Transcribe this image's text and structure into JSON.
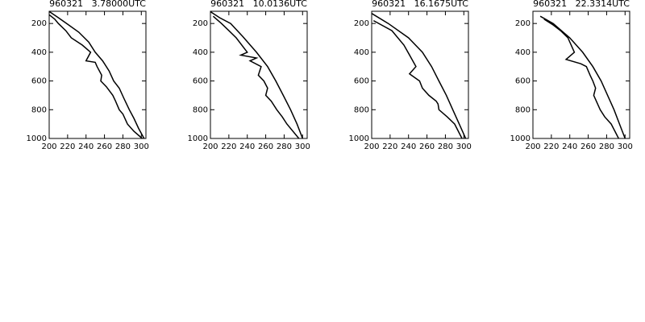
{
  "chart_data": [
    {
      "type": "line",
      "title": "960321   3.78000UTC",
      "xlim": [
        200,
        305
      ],
      "ylim": [
        1000,
        115
      ],
      "xticks": [
        200,
        220,
        240,
        260,
        280,
        300
      ],
      "yticks": [
        200,
        400,
        600,
        800,
        1000
      ],
      "color": "#000000",
      "series": [
        {
          "color": "#000000",
          "x": [
            200,
            210,
            219,
            232,
            243,
            250,
            258,
            265,
            270,
            276,
            281,
            287,
            292,
            297,
            303
          ],
          "values": [
            116,
            160,
            200,
            260,
            330,
            400,
            460,
            530,
            600,
            650,
            720,
            800,
            860,
            930,
            1000
          ]
        },
        {
          "color": "#000000",
          "x": [
            200,
            206,
            210,
            218,
            224,
            236,
            245,
            240,
            250,
            252,
            257,
            256,
            262,
            269,
            272,
            276,
            280,
            285,
            292,
            301
          ],
          "values": [
            139,
            170,
            200,
            250,
            300,
            350,
            400,
            460,
            470,
            500,
            560,
            600,
            640,
            700,
            740,
            800,
            830,
            900,
            950,
            1000
          ]
        }
      ]
    },
    {
      "type": "line",
      "title": "960321   10.0136UTC",
      "xlim": [
        200,
        305
      ],
      "ylim": [
        1000,
        115
      ],
      "xticks": [
        200,
        220,
        240,
        260,
        280,
        300
      ],
      "yticks": [
        200,
        400,
        600,
        800,
        1000
      ],
      "color": "#000000",
      "series": [
        {
          "color": "#000000",
          "x": [
            200,
            210,
            222,
            235,
            250,
            262,
            271,
            279,
            287,
            294,
            300
          ],
          "values": [
            118,
            160,
            200,
            290,
            400,
            500,
            600,
            700,
            800,
            900,
            1000
          ]
        },
        {
          "color": "#000000",
          "x": [
            203,
            212,
            220,
            228,
            240,
            233,
            250,
            243,
            255,
            252,
            258,
            262,
            260,
            266,
            272,
            278,
            283,
            296
          ],
          "values": [
            150,
            200,
            250,
            300,
            400,
            420,
            440,
            460,
            500,
            560,
            600,
            650,
            700,
            740,
            800,
            850,
            900,
            1000
          ]
        }
      ]
    },
    {
      "type": "line",
      "title": "960321   16.1675UTC",
      "xlim": [
        200,
        305
      ],
      "ylim": [
        1000,
        115
      ],
      "xticks": [
        200,
        220,
        240,
        260,
        280,
        300
      ],
      "yticks": [
        200,
        400,
        600,
        800,
        1000
      ],
      "color": "#000000",
      "series": [
        {
          "color": "#000000",
          "x": [
            200,
            218,
            240,
            255,
            265,
            273,
            281,
            288,
            295,
            302
          ],
          "values": [
            130,
            200,
            300,
            400,
            500,
            600,
            700,
            800,
            900,
            1000
          ]
        },
        {
          "color": "#000000",
          "x": [
            202,
            222,
            235,
            242,
            248,
            241,
            252,
            255,
            262,
            270,
            272,
            273,
            282,
            290,
            298
          ],
          "values": [
            180,
            250,
            350,
            430,
            500,
            550,
            600,
            650,
            700,
            740,
            760,
            800,
            850,
            900,
            1000
          ]
        }
      ]
    },
    {
      "type": "line",
      "title": "960321   22.3314UTC",
      "xlim": [
        200,
        305
      ],
      "ylim": [
        1000,
        115
      ],
      "xticks": [
        200,
        220,
        240,
        260,
        280,
        300
      ],
      "yticks": [
        200,
        400,
        600,
        800,
        1000
      ],
      "color": "#000000",
      "series": [
        {
          "color": "#000000",
          "x": [
            208,
            222,
            240,
            254,
            265,
            274,
            281,
            288,
            294,
            300
          ],
          "values": [
            150,
            200,
            300,
            400,
            500,
            600,
            700,
            800,
            900,
            1000
          ]
        },
        {
          "color": "#000000",
          "x": [
            212,
            222,
            230,
            238,
            245,
            236,
            252,
            258,
            262,
            265,
            268,
            266,
            273,
            278,
            285,
            293
          ],
          "values": [
            170,
            210,
            250,
            300,
            400,
            450,
            480,
            500,
            560,
            600,
            650,
            700,
            800,
            850,
            900,
            1000
          ]
        }
      ]
    }
  ]
}
